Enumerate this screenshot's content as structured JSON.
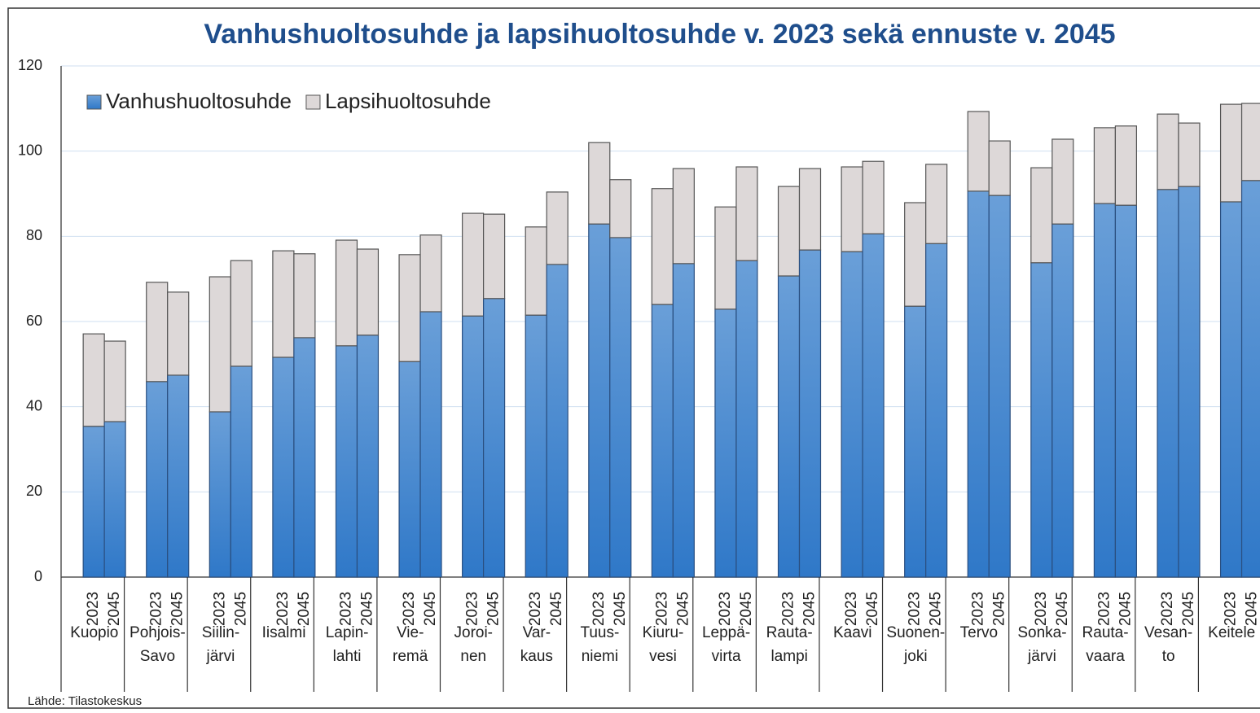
{
  "chart_data": {
    "type": "stacked-bar",
    "title": "Vanhushuoltosuhde ja lapsihuoltosuhde v. 2023 sekä ennuste v. 2045",
    "source": "Lähde: Tilastokeskus",
    "groups": [
      [
        "Kuopio"
      ],
      [
        "Pohjois-",
        "Savo"
      ],
      [
        "Siilin-",
        "järvi"
      ],
      [
        "Iisalmi"
      ],
      [
        "Lapin-",
        "lahti"
      ],
      [
        "Vie-",
        "remä"
      ],
      [
        "Joroi-",
        "nen"
      ],
      [
        "Var-",
        "kaus"
      ],
      [
        "Tuus-",
        "niemi"
      ],
      [
        "Kiuru-",
        "vesi"
      ],
      [
        "Leppä-",
        "virta"
      ],
      [
        "Rauta-",
        "lampi"
      ],
      [
        "Kaavi"
      ],
      [
        "Suonen-",
        "joki"
      ],
      [
        "Tervo"
      ],
      [
        "Sonka-",
        "järvi"
      ],
      [
        "Rauta-",
        "vaara"
      ],
      [
        "Vesan-",
        "to"
      ],
      [
        "Keitele"
      ]
    ],
    "categories": [
      "2023",
      "2045",
      "2023",
      "2045",
      "2023",
      "2045",
      "2023",
      "2045",
      "2023",
      "2045",
      "2023",
      "2045",
      "2023",
      "2045",
      "2023",
      "2045",
      "2023",
      "2045",
      "2023",
      "2045",
      "2023",
      "2045",
      "2023",
      "2045",
      "2023",
      "2045",
      "2023",
      "2045",
      "2023",
      "2045",
      "2023",
      "2045",
      "2023",
      "2045",
      "2023",
      "2045",
      "2023",
      "2045"
    ],
    "series": [
      {
        "name": "Vanhushuoltosuhde",
        "color": "#3f85d0",
        "values": [
          35.4,
          36.5,
          45.9,
          47.4,
          38.8,
          49.5,
          51.6,
          56.2,
          54.3,
          56.8,
          50.6,
          62.3,
          61.3,
          65.4,
          61.5,
          73.4,
          82.9,
          79.7,
          64.0,
          73.6,
          62.9,
          74.3,
          70.7,
          76.8,
          76.4,
          80.6,
          63.6,
          78.3,
          90.6,
          89.6,
          73.8,
          82.9,
          87.7,
          87.3,
          91.0,
          91.7,
          88.1,
          93.1
        ]
      },
      {
        "name": "Lapsihuoltosuhde",
        "color": "#ddd8d8",
        "values": [
          21.7,
          18.9,
          23.3,
          19.5,
          31.7,
          24.8,
          25.0,
          19.7,
          24.8,
          20.2,
          25.1,
          18.0,
          24.1,
          19.8,
          20.7,
          17.0,
          19.1,
          13.6,
          27.2,
          22.3,
          24.0,
          22.0,
          21.0,
          19.1,
          19.9,
          17.0,
          24.3,
          18.6,
          18.7,
          12.8,
          22.3,
          19.9,
          17.8,
          18.6,
          17.7,
          14.9,
          22.9,
          18.1
        ]
      }
    ],
    "ylim": [
      0,
      120
    ],
    "yticks": [
      0,
      20,
      40,
      60,
      80,
      100,
      120
    ],
    "grid": true,
    "legend": "top-left"
  }
}
